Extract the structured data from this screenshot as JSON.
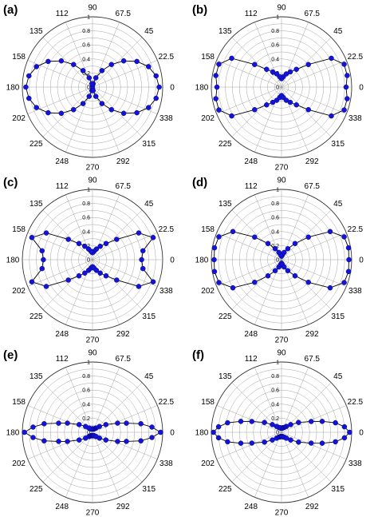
{
  "figure": {
    "panel_labels": [
      "(a)",
      "(b)",
      "(c)",
      "(d)",
      "(e)",
      "(f)"
    ]
  },
  "colors": {
    "marker": "#1414d8",
    "marker_edge": "#00008a",
    "curve": "#000000",
    "grid": "#9a9a9a",
    "outer_circle": "#333333",
    "text": "#000000"
  },
  "chart_data": [
    {
      "type": "polar",
      "label": "(a)",
      "angle_tick_labels": [
        "90",
        "67.5",
        "45",
        "22.5",
        "0",
        "338",
        "315",
        "292",
        "270",
        "248",
        "225",
        "202",
        "180",
        "158",
        "135",
        "112"
      ],
      "radial_tick_labels": [
        "0",
        "0.2",
        "0.4",
        "0.6",
        "0.8",
        "1"
      ],
      "rlim": [
        0,
        1
      ],
      "grid": true,
      "series": [
        {
          "theta": [
            0,
            10,
            20,
            30,
            40,
            50,
            60,
            70,
            80,
            90,
            100,
            110,
            120,
            130,
            140,
            150,
            160,
            170,
            180,
            190,
            200,
            210,
            220,
            230,
            240,
            250,
            260,
            270,
            280,
            290,
            300,
            310,
            320,
            330,
            340,
            350
          ],
          "r": [
            0.95,
            0.92,
            0.85,
            0.73,
            0.58,
            0.42,
            0.27,
            0.14,
            0.05,
            0.02,
            0.05,
            0.14,
            0.27,
            0.42,
            0.58,
            0.73,
            0.85,
            0.92,
            0.95,
            0.92,
            0.85,
            0.73,
            0.58,
            0.42,
            0.27,
            0.14,
            0.05,
            0.02,
            0.05,
            0.14,
            0.27,
            0.42,
            0.58,
            0.73,
            0.85,
            0.92
          ]
        }
      ]
    },
    {
      "type": "polar",
      "label": "(b)",
      "angle_tick_labels": [
        "90",
        "67.5",
        "45",
        "22.5",
        "0",
        "338",
        "315",
        "292",
        "270",
        "248",
        "225",
        "202",
        "180",
        "158",
        "135",
        "112"
      ],
      "radial_tick_labels": [
        "0",
        "0.2",
        "0.4",
        "0.6",
        "0.8",
        "1"
      ],
      "rlim": [
        0,
        1
      ],
      "grid": true,
      "series": [
        {
          "theta": [
            0,
            10,
            20,
            30,
            40,
            50,
            60,
            70,
            80,
            90,
            100,
            110,
            120,
            130,
            140,
            150,
            160,
            170,
            180,
            190,
            200,
            210,
            220,
            230,
            240,
            250,
            260,
            270,
            280,
            290,
            300,
            310,
            320,
            330,
            340,
            350
          ],
          "r": [
            0.92,
            0.95,
            0.95,
            0.82,
            0.5,
            0.33,
            0.25,
            0.2,
            0.15,
            0.12,
            0.15,
            0.2,
            0.25,
            0.33,
            0.5,
            0.82,
            0.95,
            0.95,
            0.92,
            0.95,
            0.95,
            0.82,
            0.5,
            0.33,
            0.25,
            0.2,
            0.15,
            0.12,
            0.15,
            0.2,
            0.25,
            0.33,
            0.5,
            0.82,
            0.95,
            0.95
          ]
        }
      ]
    },
    {
      "type": "polar",
      "label": "(c)",
      "angle_tick_labels": [
        "90",
        "67.5",
        "45",
        "22.5",
        "0",
        "338",
        "315",
        "292",
        "270",
        "248",
        "225",
        "202",
        "180",
        "158",
        "135",
        "112"
      ],
      "radial_tick_labels": [
        "0",
        "0.2",
        "0.4",
        "0.6",
        "0.8",
        "1"
      ],
      "rlim": [
        0,
        1
      ],
      "grid": true,
      "series": [
        {
          "theta": [
            0,
            10,
            20,
            30,
            40,
            50,
            60,
            70,
            80,
            90,
            100,
            110,
            120,
            130,
            140,
            150,
            160,
            170,
            180,
            190,
            200,
            210,
            220,
            230,
            240,
            250,
            260,
            270,
            280,
            290,
            300,
            310,
            320,
            330,
            340,
            350
          ],
          "r": [
            0.7,
            0.73,
            0.92,
            0.76,
            0.45,
            0.3,
            0.22,
            0.16,
            0.12,
            0.1,
            0.12,
            0.16,
            0.22,
            0.3,
            0.45,
            0.76,
            0.92,
            0.73,
            0.7,
            0.73,
            0.92,
            0.76,
            0.45,
            0.3,
            0.22,
            0.16,
            0.12,
            0.1,
            0.12,
            0.16,
            0.22,
            0.3,
            0.45,
            0.76,
            0.92,
            0.73
          ]
        }
      ]
    },
    {
      "type": "polar",
      "label": "(d)",
      "angle_tick_labels": [
        "90",
        "67.5",
        "45",
        "22.5",
        "0",
        "338",
        "315",
        "292",
        "270",
        "248",
        "225",
        "202",
        "180",
        "158",
        "135",
        "112"
      ],
      "radial_tick_labels": [
        "0",
        "0.2",
        "0.4",
        "0.6",
        "0.8",
        "1"
      ],
      "rlim": [
        0,
        1
      ],
      "grid": true,
      "series": [
        {
          "theta": [
            0,
            10,
            20,
            30,
            40,
            50,
            60,
            70,
            80,
            90,
            100,
            110,
            120,
            130,
            140,
            150,
            160,
            170,
            180,
            190,
            200,
            210,
            220,
            230,
            240,
            250,
            260,
            270,
            280,
            290,
            300,
            310,
            320,
            330,
            340,
            350
          ],
          "r": [
            0.96,
            0.97,
            0.95,
            0.8,
            0.5,
            0.3,
            0.18,
            0.11,
            0.07,
            0.05,
            0.07,
            0.11,
            0.18,
            0.3,
            0.5,
            0.8,
            0.95,
            0.97,
            0.96,
            0.97,
            0.95,
            0.8,
            0.5,
            0.3,
            0.18,
            0.11,
            0.07,
            0.05,
            0.07,
            0.11,
            0.18,
            0.3,
            0.5,
            0.8,
            0.95,
            0.97
          ]
        }
      ]
    },
    {
      "type": "polar",
      "label": "(e)",
      "angle_tick_labels": [
        "90",
        "67.5",
        "45",
        "22.5",
        "0",
        "338",
        "315",
        "292",
        "270",
        "248",
        "225",
        "202",
        "180",
        "158",
        "135",
        "112"
      ],
      "radial_tick_labels": [
        "0",
        "0.2",
        "0.4",
        "0.6",
        "0.8",
        "1"
      ],
      "rlim": [
        0,
        1
      ],
      "grid": true,
      "series": [
        {
          "theta": [
            0,
            5,
            10,
            15,
            20,
            30,
            40,
            50,
            60,
            70,
            80,
            90,
            100,
            110,
            120,
            130,
            140,
            150,
            160,
            165,
            170,
            175,
            180,
            185,
            190,
            195,
            200,
            210,
            220,
            230,
            240,
            250,
            260,
            270,
            280,
            290,
            300,
            310,
            320,
            330,
            340,
            345,
            350,
            355
          ],
          "r": [
            0.97,
            0.85,
            0.7,
            0.5,
            0.38,
            0.22,
            0.13,
            0.08,
            0.06,
            0.05,
            0.05,
            0.05,
            0.05,
            0.05,
            0.06,
            0.08,
            0.13,
            0.22,
            0.38,
            0.5,
            0.7,
            0.85,
            0.97,
            0.85,
            0.7,
            0.5,
            0.38,
            0.22,
            0.13,
            0.08,
            0.06,
            0.05,
            0.05,
            0.05,
            0.05,
            0.05,
            0.06,
            0.08,
            0.13,
            0.22,
            0.38,
            0.5,
            0.7,
            0.85
          ]
        }
      ]
    },
    {
      "type": "polar",
      "label": "(f)",
      "angle_tick_labels": [
        "90",
        "67.5",
        "45",
        "22.5",
        "0",
        "338",
        "315",
        "292",
        "270",
        "248",
        "225",
        "202",
        "180",
        "158",
        "135",
        "112"
      ],
      "radial_tick_labels": [
        "0",
        "0.2",
        "0.4",
        "0.6",
        "0.8",
        "1"
      ],
      "rlim": [
        0,
        1
      ],
      "grid": true,
      "series": [
        {
          "theta": [
            0,
            5,
            10,
            15,
            20,
            30,
            40,
            50,
            60,
            70,
            80,
            90,
            100,
            110,
            120,
            130,
            140,
            150,
            160,
            165,
            170,
            175,
            180,
            185,
            190,
            195,
            200,
            210,
            220,
            230,
            240,
            250,
            260,
            270,
            280,
            290,
            300,
            310,
            320,
            330,
            340,
            345,
            350,
            355
          ],
          "r": [
            0.97,
            0.9,
            0.78,
            0.6,
            0.45,
            0.28,
            0.17,
            0.11,
            0.08,
            0.07,
            0.06,
            0.06,
            0.06,
            0.07,
            0.08,
            0.11,
            0.17,
            0.28,
            0.45,
            0.6,
            0.78,
            0.9,
            0.97,
            0.9,
            0.78,
            0.6,
            0.45,
            0.28,
            0.17,
            0.11,
            0.08,
            0.07,
            0.06,
            0.06,
            0.06,
            0.07,
            0.08,
            0.11,
            0.17,
            0.28,
            0.45,
            0.6,
            0.78,
            0.9
          ]
        }
      ]
    }
  ]
}
